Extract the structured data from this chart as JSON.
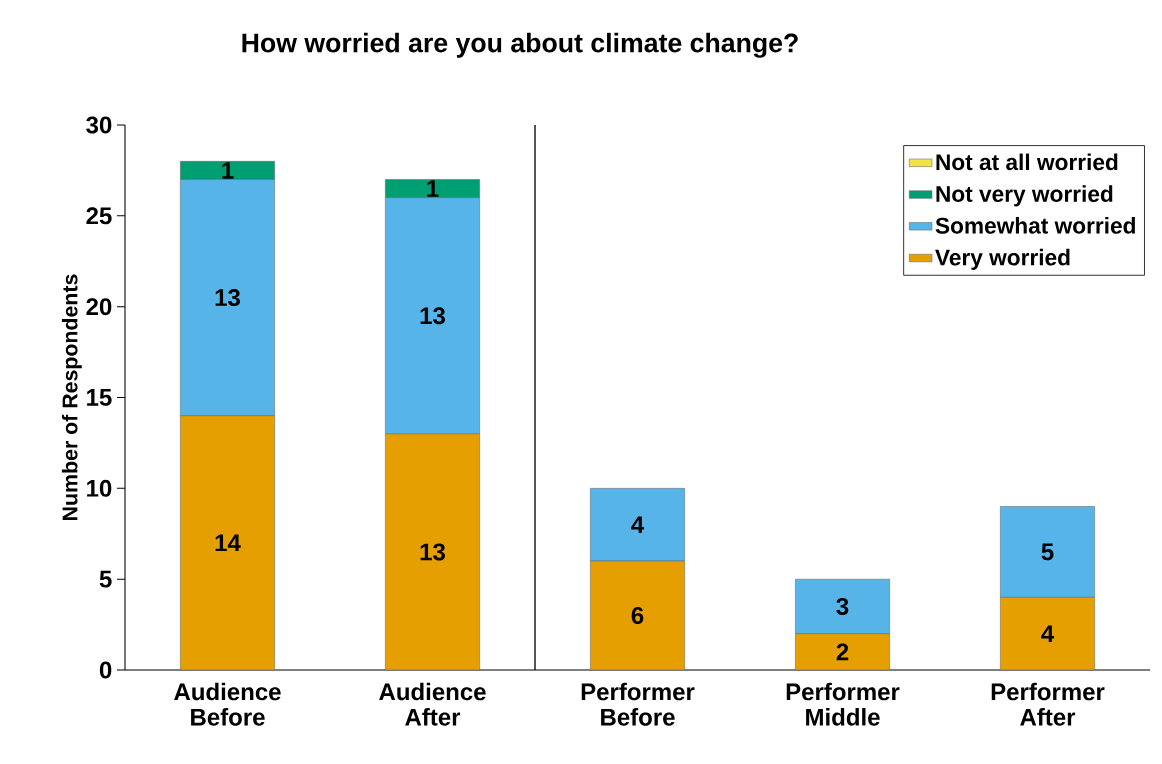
{
  "chart_data": {
    "type": "bar",
    "stacked": true,
    "title": "How worried are you about climate change?",
    "ylabel": "Number of Respondents",
    "categories": [
      "Audience Before",
      "Audience After",
      "Performer Before",
      "Performer Middle",
      "Performer After"
    ],
    "series": [
      {
        "name": "Very worried",
        "color": "#e69f00",
        "values": [
          14,
          13,
          6,
          2,
          4
        ]
      },
      {
        "name": "Somewhat worried",
        "color": "#56b4e9",
        "values": [
          13,
          13,
          4,
          3,
          5
        ]
      },
      {
        "name": "Not very worried",
        "color": "#009e73",
        "values": [
          1,
          1,
          null,
          null,
          null
        ]
      },
      {
        "name": "Not at all worried",
        "color": "#f0e442",
        "values": [
          null,
          null,
          null,
          null,
          null
        ]
      }
    ],
    "ylim": [
      0,
      30
    ],
    "yticks": [
      0,
      5,
      10,
      15,
      20,
      25,
      30
    ],
    "data_labels": true,
    "legend": "top right",
    "grid": false
  }
}
